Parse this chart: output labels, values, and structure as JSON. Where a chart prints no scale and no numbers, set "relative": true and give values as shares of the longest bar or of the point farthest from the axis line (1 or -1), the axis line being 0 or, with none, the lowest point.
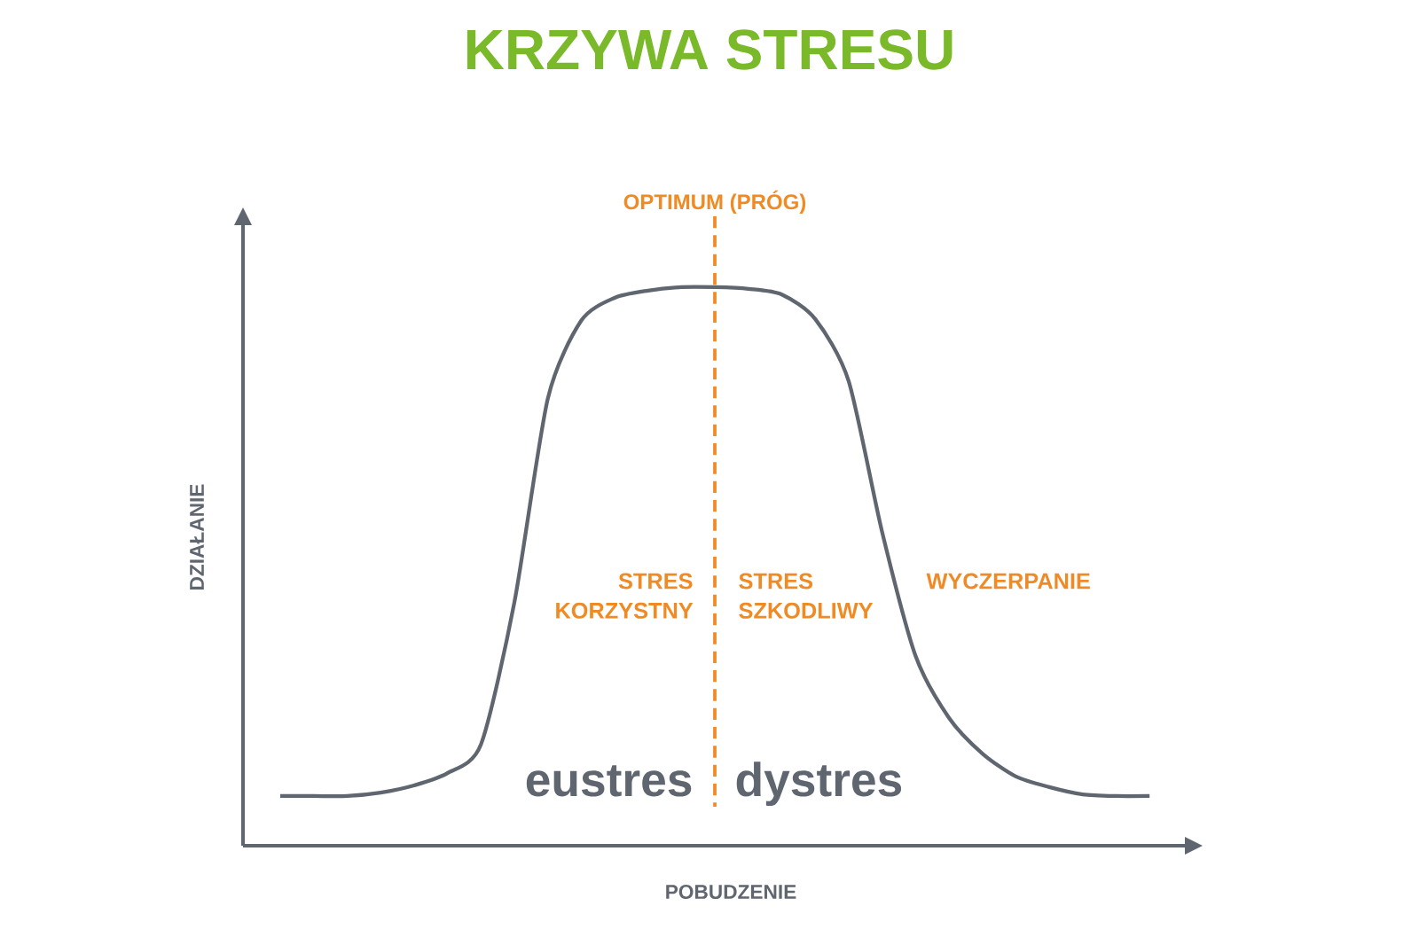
{
  "chart_data": {
    "type": "line",
    "title": "KRZYWA STRESU",
    "xlabel": "POBUDZENIE",
    "ylabel": "DZIAŁANIE",
    "relative": true,
    "categories": [
      null,
      null,
      null,
      null,
      null,
      null,
      null,
      null,
      null,
      null,
      null,
      null,
      null,
      null,
      null,
      null,
      null,
      null,
      null,
      null,
      null,
      null,
      null,
      null,
      null,
      null,
      null
    ],
    "series": [
      {
        "color": "#5f6670",
        "values": [
          0.089,
          0.089,
          0.089,
          0.095,
          0.108,
          0.13,
          0.181,
          0.435,
          0.8,
          0.94,
          0.981,
          0.994,
          1.0,
          1.0,
          0.997,
          0.987,
          0.943,
          0.832,
          0.562,
          0.34,
          0.229,
          0.165,
          0.124,
          0.105,
          0.092,
          0.089,
          0.089
        ]
      }
    ],
    "annotations": [
      "STRES KORZYSTNY",
      "STRES SZKODLIWY",
      "WYCZERPANIE",
      "eustres",
      "dystres",
      "OPTIMUM (PRÓG)"
    ]
  }
}
